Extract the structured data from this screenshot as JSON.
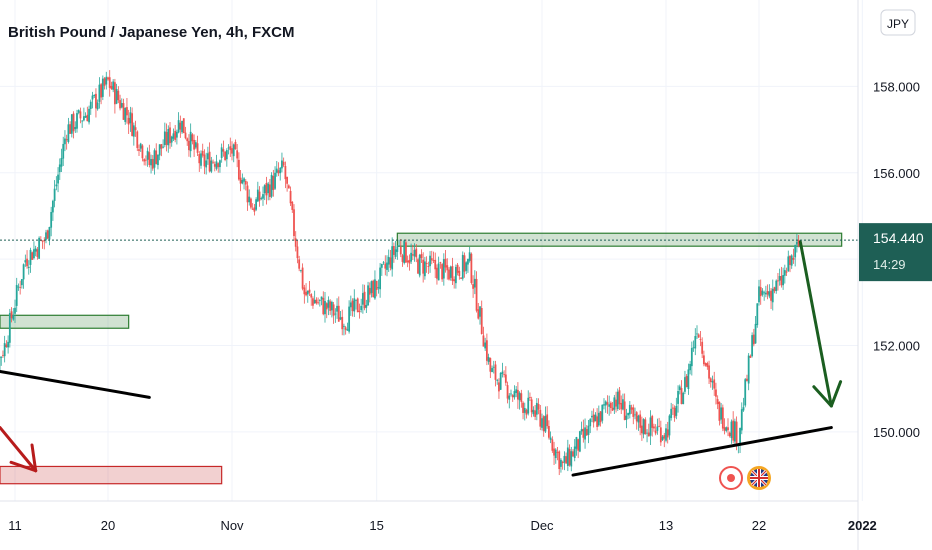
{
  "header": {
    "title": "British Pound / Japanese Yen, 4h, FXCM",
    "currency_unit": "JPY"
  },
  "price_scale": {
    "current_price": "154.440",
    "countdown": "14:29",
    "label_color": "#1e5f55"
  },
  "colors": {
    "up_candle": "#26a69a",
    "down_candle": "#ef5350",
    "green_zone": "#2e7d32",
    "red_zone": "#c62828",
    "trend_line": "#000000",
    "arrow_green": "#1b5e20",
    "arrow_red": "#b71c1c"
  },
  "events": [
    {
      "icon": "red-dot-event-icon",
      "color": "#ef5350"
    },
    {
      "icon": "uk-flag-event-icon",
      "color": "#f5a623"
    }
  ],
  "chart_data": {
    "type": "candlestick",
    "title": "British Pound / Japanese Yen, 4h, FXCM",
    "symbol": "GBPJPY",
    "timeframe": "4h",
    "ylim": [
      148.4,
      160.0
    ],
    "y_ticks": [
      "158.000",
      "156.000",
      "154.000",
      "152.000",
      "150.000"
    ],
    "y_tick_values": [
      158,
      156,
      154,
      152,
      150
    ],
    "x_ticks": [
      {
        "label": "11",
        "bold": false
      },
      {
        "label": "20",
        "bold": false
      },
      {
        "label": "Nov",
        "bold": false
      },
      {
        "label": "15",
        "bold": false
      },
      {
        "label": "Dec",
        "bold": false
      },
      {
        "label": "13",
        "bold": false
      },
      {
        "label": "22",
        "bold": false
      },
      {
        "label": "2022",
        "bold": true
      }
    ],
    "price_path": [
      {
        "date": "Oct 8",
        "price": 150.9
      },
      {
        "date": "Oct 10",
        "price": 152.0
      },
      {
        "date": "Oct 12",
        "price": 154.0
      },
      {
        "date": "Oct 14",
        "price": 154.5
      },
      {
        "date": "Oct 16",
        "price": 157.0
      },
      {
        "date": "Oct 18",
        "price": 157.4
      },
      {
        "date": "Oct 20",
        "price": 158.1
      },
      {
        "date": "Oct 22",
        "price": 157.3
      },
      {
        "date": "Oct 24",
        "price": 156.2
      },
      {
        "date": "Oct 27",
        "price": 157.2
      },
      {
        "date": "Oct 29",
        "price": 156.2
      },
      {
        "date": "Nov 1",
        "price": 156.5
      },
      {
        "date": "Nov 3",
        "price": 155.2
      },
      {
        "date": "Nov 6",
        "price": 156.1
      },
      {
        "date": "Nov 8",
        "price": 153.2
      },
      {
        "date": "Nov 10",
        "price": 152.9
      },
      {
        "date": "Nov 12",
        "price": 152.6
      },
      {
        "date": "Nov 15",
        "price": 153.4
      },
      {
        "date": "Nov 17",
        "price": 154.3
      },
      {
        "date": "Nov 19",
        "price": 153.9
      },
      {
        "date": "Nov 22",
        "price": 153.7
      },
      {
        "date": "Nov 24",
        "price": 153.9
      },
      {
        "date": "Nov 26",
        "price": 151.4
      },
      {
        "date": "Nov 29",
        "price": 150.7
      },
      {
        "date": "Dec 1",
        "price": 150.3
      },
      {
        "date": "Dec 3",
        "price": 149.2
      },
      {
        "date": "Dec 6",
        "price": 150.2
      },
      {
        "date": "Dec 8",
        "price": 150.8
      },
      {
        "date": "Dec 10",
        "price": 150.2
      },
      {
        "date": "Dec 13",
        "price": 150.0
      },
      {
        "date": "Dec 15",
        "price": 151.2
      },
      {
        "date": "Dec 16",
        "price": 152.5
      },
      {
        "date": "Dec 18",
        "price": 150.5
      },
      {
        "date": "Dec 20",
        "price": 149.9
      },
      {
        "date": "Dec 22",
        "price": 153.1
      },
      {
        "date": "Dec 24",
        "price": 153.4
      },
      {
        "date": "Dec 26",
        "price": 154.4
      }
    ],
    "annotations": [
      {
        "kind": "zone",
        "color": "green",
        "date_from": "Nov 17",
        "date_to": "Dec 30",
        "price_from": 154.3,
        "price_to": 154.6
      },
      {
        "kind": "zone",
        "color": "green",
        "date_from": "Oct 8",
        "date_to": "Oct 22",
        "price_from": 152.4,
        "price_to": 152.7
      },
      {
        "kind": "zone",
        "color": "red",
        "date_from": "Oct 8",
        "date_to": "Oct 31",
        "price_from": 148.8,
        "price_to": 149.2
      },
      {
        "kind": "trendline",
        "color": "black",
        "date_from": "Oct 8",
        "price_from": 151.4,
        "date_to": "Oct 24",
        "price_to": 150.8
      },
      {
        "kind": "trendline",
        "color": "black",
        "date_from": "Dec 4",
        "price_from": 149.0,
        "date_to": "Dec 29",
        "price_to": 150.1
      },
      {
        "kind": "arrow",
        "color": "green",
        "date_from": "Dec 26",
        "price_from": 154.4,
        "date_to": "Dec 29",
        "price_to": 150.6
      },
      {
        "kind": "arrow",
        "color": "red",
        "date_from": "Oct 8",
        "price_from": 150.1,
        "date_to": "Oct 13",
        "price_to": 149.1
      }
    ]
  }
}
